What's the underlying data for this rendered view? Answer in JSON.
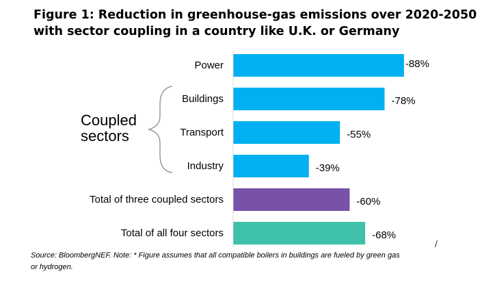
{
  "title": {
    "line1": "Figure 1: Reduction in greenhouse-gas emissions over 2020-2050",
    "line2": "with sector coupling in a country like U.K. or Germany"
  },
  "group_label": {
    "line1": "Coupled",
    "line2": "sectors"
  },
  "source_note": {
    "line1": "Source: BloombergNEF. Note: * Figure assumes that all compatible boilers in buildings are fueled by green gas",
    "line2": "or hydrogen."
  },
  "stray_mark": "/",
  "chart_data": {
    "type": "bar",
    "orientation": "horizontal",
    "categories": [
      "Power",
      "Buildings",
      "Transport",
      "Industry",
      "Total of three coupled sectors",
      "Total of all four sectors"
    ],
    "values": [
      -88,
      -78,
      -55,
      -39,
      -60,
      -68
    ],
    "data_labels": [
      "-88%",
      "-78%",
      "-55%",
      "-39%",
      "-60%",
      "-68%"
    ],
    "colors": [
      "#00b0f0",
      "#00b0f0",
      "#00b0f0",
      "#00b0f0",
      "#7851a9",
      "#3fc1a9"
    ],
    "xlim": [
      0,
      -100
    ],
    "grid": false,
    "legend": "none"
  }
}
